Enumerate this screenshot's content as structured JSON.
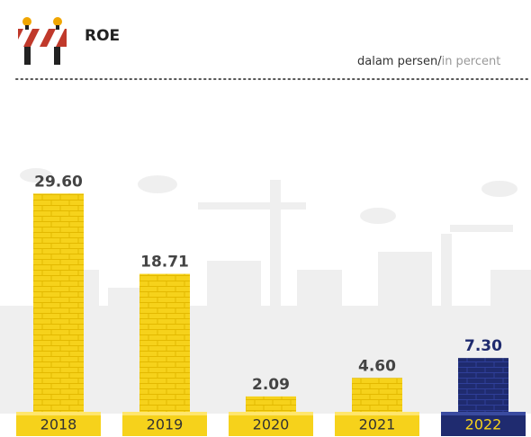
{
  "chart_data": {
    "type": "bar",
    "title": "ROE",
    "unit_primary": "dalam persen/",
    "unit_secondary": "in percent",
    "categories": [
      "2018",
      "2019",
      "2020",
      "2021",
      "2022"
    ],
    "values": [
      29.6,
      18.71,
      2.09,
      4.6,
      7.3
    ],
    "value_labels": [
      "29.60",
      "18.71",
      "2.09",
      "4.60",
      "7.30"
    ],
    "colors": [
      "#f6d21b",
      "#f6d21b",
      "#f6d21b",
      "#f6d21b",
      "#1f2b6f"
    ]
  }
}
